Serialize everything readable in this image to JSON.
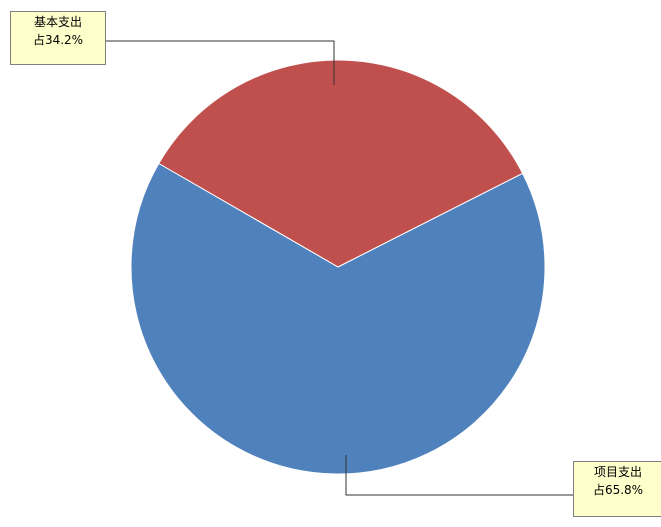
{
  "chart_data": {
    "type": "pie",
    "slices": [
      {
        "label": "基本支出",
        "value": 34.2,
        "value_label": "占34.2%",
        "color": "#c0504d"
      },
      {
        "label": "项目支出",
        "value": 65.8,
        "value_label": "占65.8%",
        "color": "#4f81bd"
      }
    ],
    "start_angle_deg": 300,
    "legend": "none"
  }
}
